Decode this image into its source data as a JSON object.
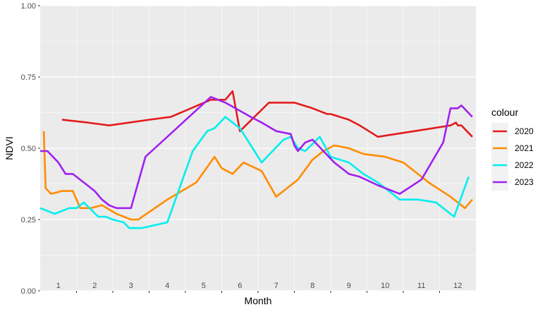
{
  "chart_data": {
    "type": "line",
    "xlabel": "Month",
    "ylabel": "NDVI",
    "xlim": [
      0.5,
      12.5
    ],
    "ylim": [
      0,
      1
    ],
    "x_ticks": [
      1,
      2,
      3,
      4,
      5,
      6,
      7,
      8,
      9,
      10,
      11,
      12
    ],
    "x_tick_labels": [
      "1",
      "2",
      "3",
      "4",
      "5",
      "6",
      "7",
      "8",
      "9",
      "10",
      "11",
      "12"
    ],
    "y_ticks": [
      0,
      0.25,
      0.5,
      0.75,
      1
    ],
    "y_tick_labels": [
      "0.00",
      "0.25",
      "0.50",
      "0.75",
      "1.00"
    ],
    "grid": true,
    "legend": {
      "title": "colour",
      "position": "right"
    },
    "series": [
      {
        "name": "2020",
        "color": "#e41a1c",
        "x": [
          1.1,
          1.8,
          2.4,
          3.5,
          4.1,
          5.2,
          5.6,
          5.8,
          6.0,
          6.8,
          7.5,
          8.0,
          8.4,
          8.5,
          9.0,
          9.3,
          9.8,
          10.8,
          11.8,
          11.95,
          12.0,
          12.1,
          12.4
        ],
        "y": [
          0.6,
          0.59,
          0.58,
          0.6,
          0.61,
          0.67,
          0.67,
          0.7,
          0.56,
          0.66,
          0.66,
          0.64,
          0.62,
          0.62,
          0.6,
          0.58,
          0.54,
          0.56,
          0.58,
          0.59,
          0.58,
          0.58,
          0.54
        ]
      },
      {
        "name": "2021",
        "color": "#ff8c00",
        "x": [
          0.6,
          0.65,
          0.8,
          1.1,
          1.4,
          1.6,
          1.9,
          2.2,
          2.6,
          3.0,
          3.2,
          4.0,
          4.8,
          5.3,
          5.5,
          5.8,
          6.1,
          6.6,
          7.0,
          7.6,
          8.0,
          8.3,
          8.6,
          9.0,
          9.4,
          10.0,
          10.5,
          11.0,
          11.2,
          11.8,
          12.2,
          12.4
        ],
        "y": [
          0.56,
          0.36,
          0.34,
          0.35,
          0.35,
          0.29,
          0.29,
          0.3,
          0.27,
          0.25,
          0.25,
          0.32,
          0.38,
          0.47,
          0.43,
          0.41,
          0.45,
          0.42,
          0.33,
          0.39,
          0.46,
          0.49,
          0.51,
          0.5,
          0.48,
          0.47,
          0.45,
          0.4,
          0.38,
          0.33,
          0.29,
          0.32
        ]
      },
      {
        "name": "2022",
        "color": "#00eeee",
        "x": [
          0.5,
          0.9,
          1.3,
          1.5,
          1.7,
          2.1,
          2.3,
          2.5,
          2.8,
          2.95,
          3.3,
          4.0,
          4.7,
          5.1,
          5.3,
          5.6,
          6.0,
          6.4,
          6.6,
          7.2,
          7.4,
          7.6,
          7.8,
          8.2,
          8.5,
          9.0,
          9.4,
          9.8,
          10.4,
          10.9,
          11.4,
          11.9,
          12.3
        ],
        "y": [
          0.29,
          0.27,
          0.29,
          0.29,
          0.31,
          0.26,
          0.26,
          0.25,
          0.24,
          0.22,
          0.22,
          0.24,
          0.49,
          0.56,
          0.57,
          0.61,
          0.57,
          0.49,
          0.45,
          0.53,
          0.54,
          0.5,
          0.49,
          0.54,
          0.47,
          0.45,
          0.41,
          0.38,
          0.32,
          0.32,
          0.31,
          0.26,
          0.4
        ]
      },
      {
        "name": "2023",
        "color": "#a020f0",
        "x": [
          0.5,
          0.7,
          1.0,
          1.2,
          1.4,
          1.7,
          1.8,
          2.0,
          2.2,
          2.4,
          2.6,
          3.0,
          3.4,
          4.0,
          4.6,
          5.2,
          5.6,
          6.3,
          6.6,
          7.0,
          7.4,
          7.5,
          7.6,
          7.8,
          8.0,
          8.3,
          8.6,
          9.0,
          9.3,
          9.8,
          10.4,
          11.0,
          11.6,
          11.8,
          12.0,
          12.1,
          12.4
        ],
        "y": [
          0.49,
          0.49,
          0.45,
          0.41,
          0.41,
          0.38,
          0.37,
          0.35,
          0.32,
          0.3,
          0.29,
          0.29,
          0.47,
          0.54,
          0.61,
          0.68,
          0.66,
          0.61,
          0.59,
          0.56,
          0.55,
          0.51,
          0.49,
          0.52,
          0.53,
          0.49,
          0.45,
          0.41,
          0.4,
          0.37,
          0.34,
          0.39,
          0.52,
          0.64,
          0.64,
          0.65,
          0.61
        ]
      }
    ]
  }
}
